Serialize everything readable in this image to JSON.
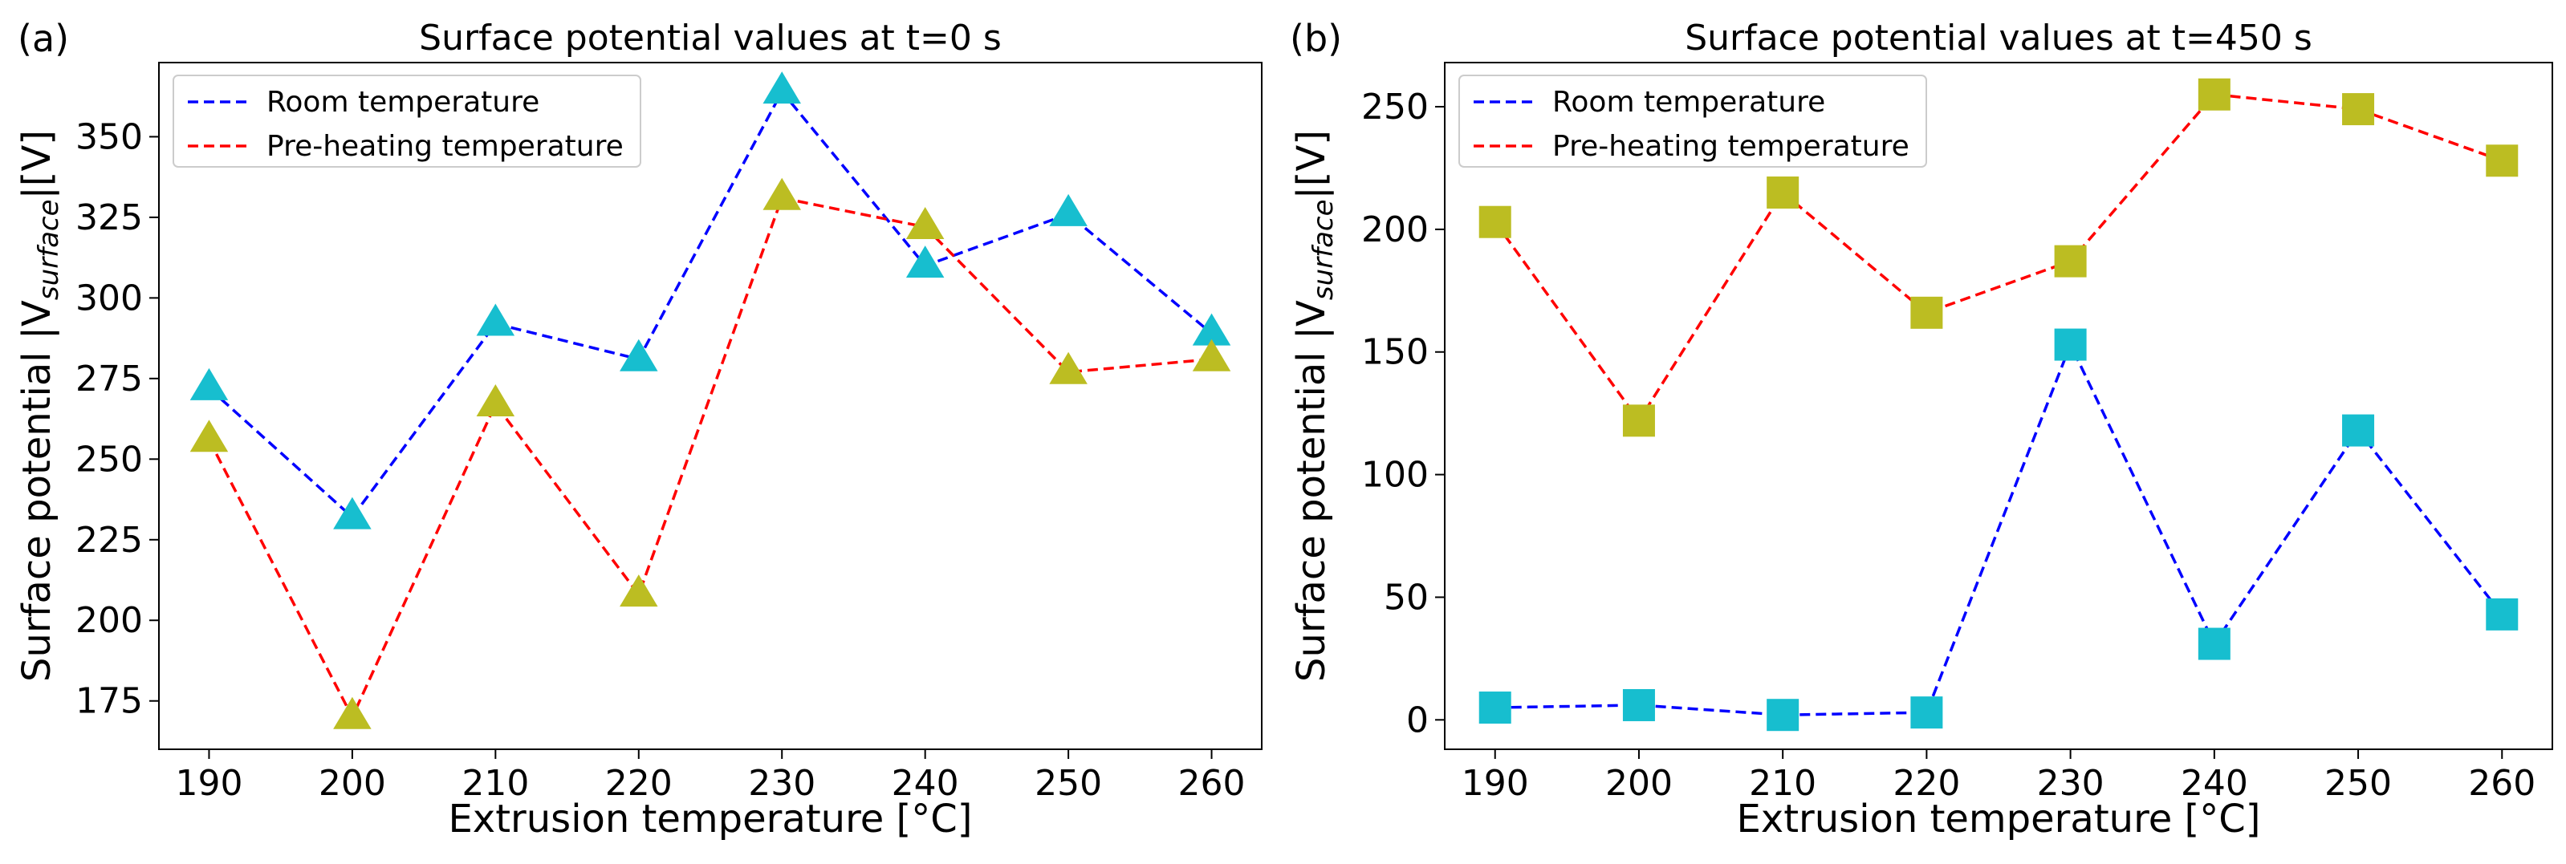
{
  "panel_tags": [
    "(a)",
    "(b)"
  ],
  "chart_data": [
    {
      "type": "line",
      "title": "Surface potential values at t=0 s",
      "xlabel": "Extrusion temperature [°C]",
      "ylabel_prefix": "Surface potential |V",
      "ylabel_sub": "surface",
      "ylabel_suffix": "|[V]",
      "x": [
        190,
        200,
        210,
        220,
        230,
        240,
        250,
        260
      ],
      "xticks": [
        "190",
        "200",
        "210",
        "220",
        "230",
        "240",
        "250",
        "260"
      ],
      "xlim": [
        186.5,
        263.5
      ],
      "yticks": [
        175,
        200,
        225,
        250,
        275,
        300,
        325,
        350
      ],
      "ylim": [
        160,
        373
      ],
      "marker": "triangle",
      "legend_position": "upper-left",
      "series": [
        {
          "name": "Room temperature",
          "line_color": "#0000ff",
          "marker_color": "#17becf",
          "values": [
            272,
            232,
            292,
            281,
            364,
            310,
            326,
            289
          ]
        },
        {
          "name": "Pre-heating temperature",
          "line_color": "#ff0000",
          "marker_color": "#bcbd22",
          "values": [
            256,
            170,
            267,
            208,
            331,
            322,
            277,
            281
          ]
        }
      ]
    },
    {
      "type": "line",
      "title": "Surface potential values at t=450 s",
      "xlabel": "Extrusion temperature [°C]",
      "ylabel_prefix": "Surface potential |V",
      "ylabel_sub": "surface",
      "ylabel_suffix": "|[V]",
      "x": [
        190,
        200,
        210,
        220,
        230,
        240,
        250,
        260
      ],
      "xticks": [
        "190",
        "200",
        "210",
        "220",
        "230",
        "240",
        "250",
        "260"
      ],
      "xlim": [
        186.5,
        263.5
      ],
      "yticks": [
        0,
        50,
        100,
        150,
        200,
        250
      ],
      "ylim": [
        -12,
        268
      ],
      "marker": "square",
      "legend_position": "upper-left",
      "series": [
        {
          "name": "Room temperature",
          "line_color": "#0000ff",
          "marker_color": "#17becf",
          "values": [
            5,
            6,
            2,
            3,
            153,
            31,
            118,
            43
          ]
        },
        {
          "name": "Pre-heating temperature",
          "line_color": "#ff0000",
          "marker_color": "#bcbd22",
          "values": [
            203,
            122,
            215,
            166,
            187,
            255,
            249,
            228
          ]
        }
      ]
    }
  ]
}
